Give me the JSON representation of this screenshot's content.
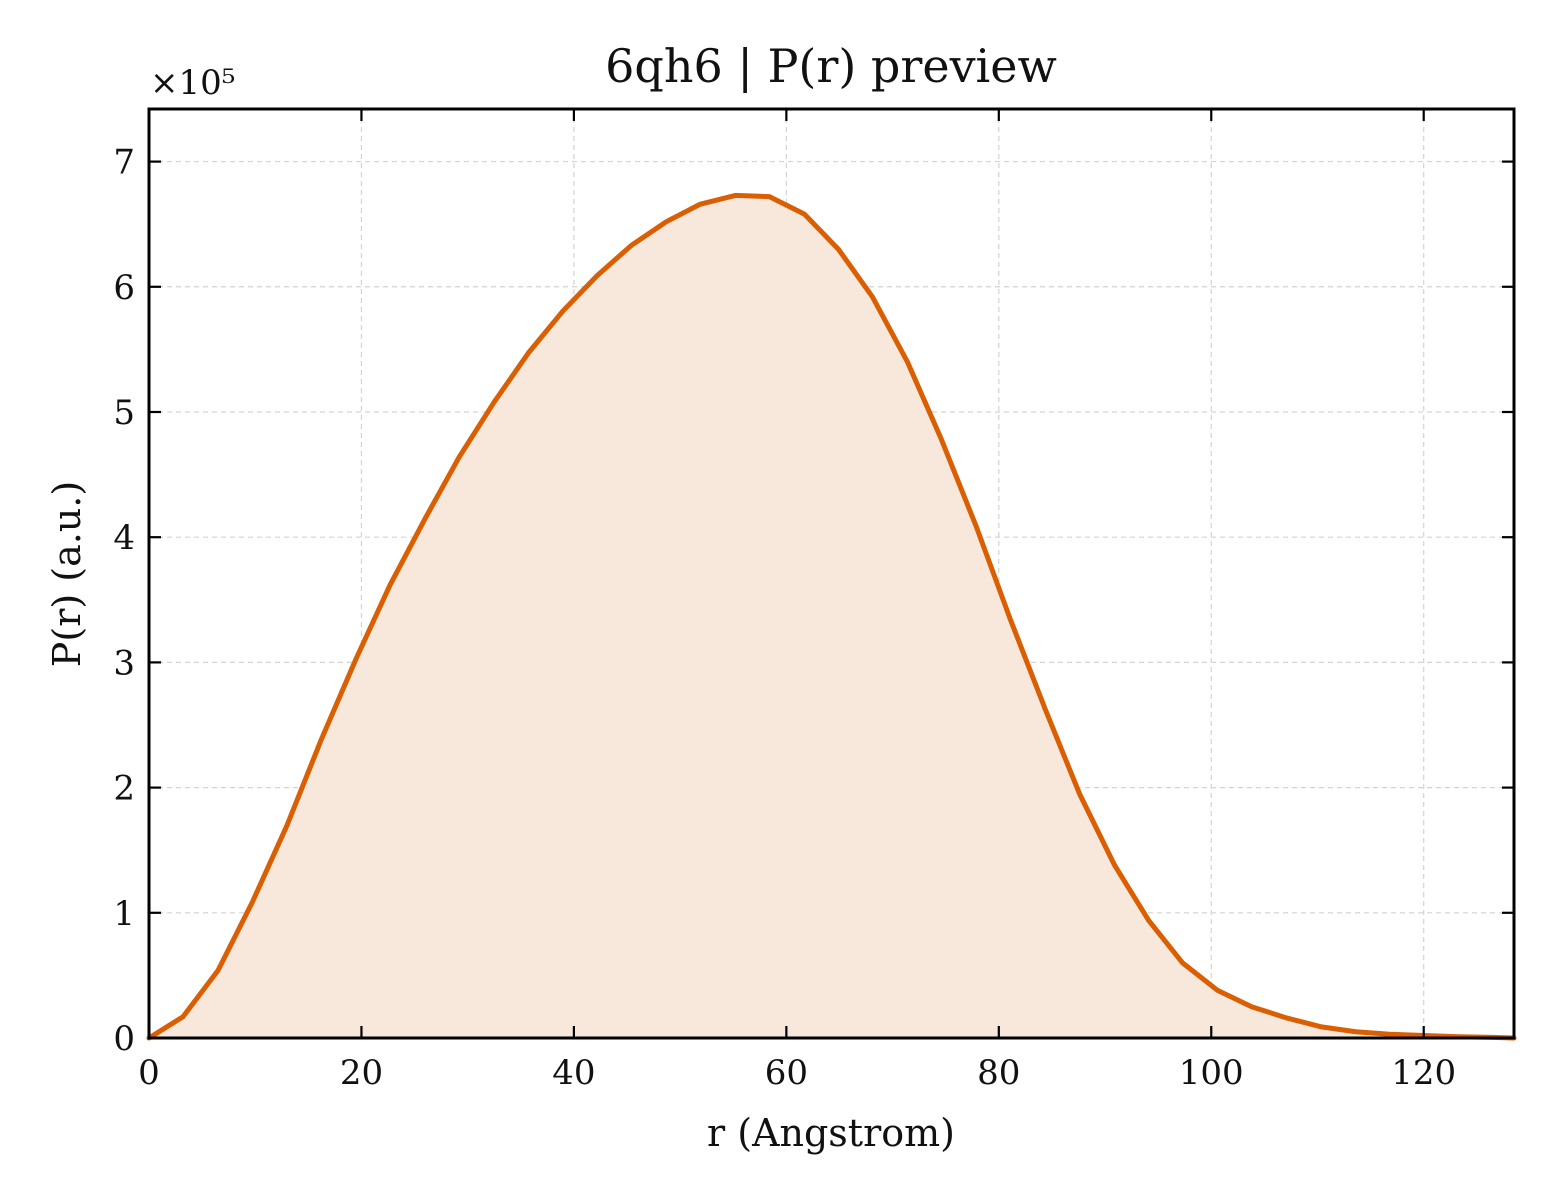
{
  "chart_data": {
    "type": "area",
    "title": "6qh6 | P(r) preview",
    "xlabel": "r (Angstrom)",
    "ylabel": "P(r) (a.u.)",
    "y_multiplier_label": "×10⁵",
    "xlim": [
      0,
      128.5
    ],
    "ylim": [
      0,
      7.42
    ],
    "xticks": [
      0,
      20,
      40,
      60,
      80,
      100,
      120
    ],
    "yticks": [
      0,
      1,
      2,
      3,
      4,
      5,
      6,
      7
    ],
    "grid": true,
    "legend": "none",
    "series": [
      {
        "color": "#d95f02",
        "fill_color": "#f8e8dc",
        "x": [
          0,
          3.2,
          6.5,
          9.7,
          13.0,
          16.2,
          19.5,
          22.7,
          26.0,
          29.2,
          32.5,
          35.7,
          39.0,
          42.2,
          45.4,
          48.7,
          51.9,
          55.2,
          58.4,
          61.7,
          64.9,
          68.1,
          71.4,
          74.6,
          77.9,
          81.1,
          84.4,
          87.6,
          90.9,
          94.1,
          97.3,
          100.6,
          103.8,
          107.1,
          110.3,
          113.6,
          116.8,
          120.0,
          123.3,
          126.5,
          128.5
        ],
        "y": [
          0.0,
          0.17,
          0.54,
          1.08,
          1.7,
          2.38,
          3.03,
          3.62,
          4.15,
          4.64,
          5.08,
          5.47,
          5.81,
          6.09,
          6.33,
          6.52,
          6.66,
          6.73,
          6.72,
          6.58,
          6.3,
          5.92,
          5.4,
          4.78,
          4.08,
          3.34,
          2.62,
          1.95,
          1.38,
          0.94,
          0.6,
          0.38,
          0.25,
          0.16,
          0.09,
          0.05,
          0.03,
          0.02,
          0.01,
          0.005,
          0.0
        ]
      }
    ]
  }
}
